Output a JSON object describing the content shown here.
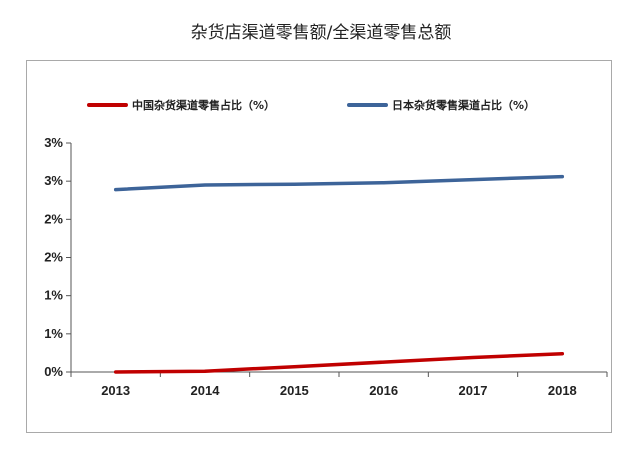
{
  "page_title": "杂货店渠道零售额/全渠道零售总额",
  "chart_data": {
    "type": "line",
    "title": "杂货店渠道零售额/全渠道零售总额",
    "xlabel": "",
    "ylabel": "",
    "categories": [
      "2013",
      "2014",
      "2015",
      "2016",
      "2017",
      "2018"
    ],
    "y_tick_labels": [
      "0%",
      "1%",
      "1%",
      "2%",
      "2%",
      "3%",
      "3%"
    ],
    "ylim": [
      0,
      3.0
    ],
    "grid": false,
    "legend_position": "top",
    "series": [
      {
        "name": "中国杂货渠道零售占比（%）",
        "color": "#c00000",
        "values": [
          0.0,
          0.01,
          0.07,
          0.13,
          0.19,
          0.24
        ]
      },
      {
        "name": "日本杂货零售渠道占比（%）",
        "color": "#3d6499",
        "values": [
          2.39,
          2.45,
          2.46,
          2.48,
          2.52,
          2.56
        ]
      }
    ]
  }
}
